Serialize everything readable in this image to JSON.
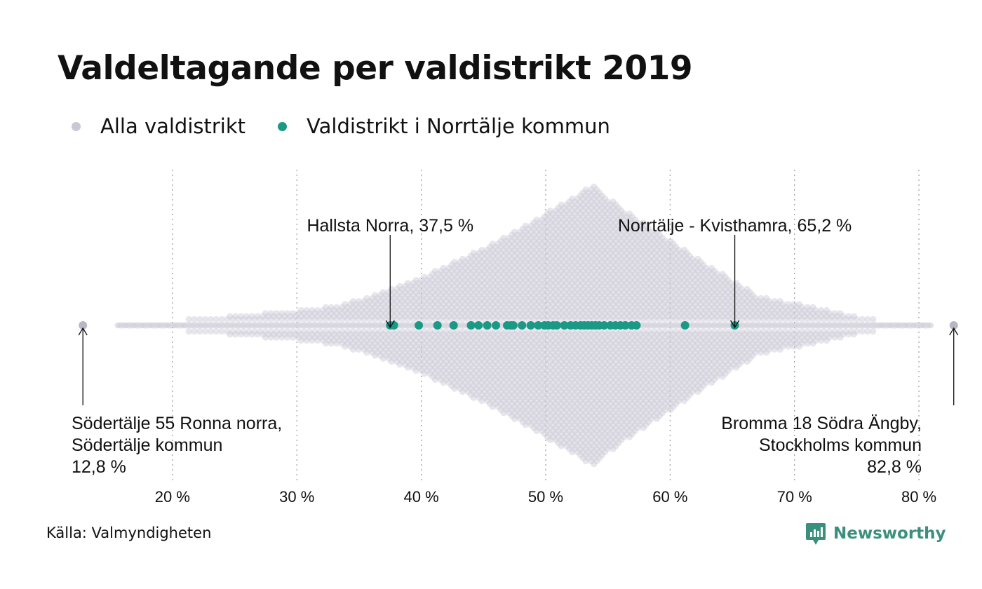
{
  "title": "Valdeltagande per valdistrikt 2019",
  "legend": [
    {
      "label": "Alla valdistrikt",
      "color": "#c9c8d4"
    },
    {
      "label": "Valdistrikt i Norrtälje kommun",
      "color": "#1a9a86"
    }
  ],
  "source": "Källa: Valmyndigheten",
  "brand": {
    "name": "Newsworthy",
    "icon": "newsworthy-logo-icon",
    "color": "#3a8f7d"
  },
  "chart_data": {
    "type": "scatter",
    "subtype": "beeswarm",
    "xlim": [
      12,
      84
    ],
    "ticks": [
      20,
      30,
      40,
      50,
      60,
      70,
      80
    ],
    "tick_labels": [
      "20 %",
      "30 %",
      "40 %",
      "50 %",
      "60 %",
      "70 %",
      "80 %"
    ],
    "grid": "vertical dotted",
    "legend_position": "top-left",
    "series": [
      {
        "name": "Valdistrikt i Norrtälje kommun",
        "color": "#1a9a86",
        "values": [
          37.5,
          37.8,
          39.8,
          41.3,
          42.6,
          44.0,
          44.6,
          45.3,
          46.0,
          46.9,
          47.2,
          47.4,
          48.1,
          48.8,
          49.4,
          49.9,
          50.2,
          50.6,
          50.9,
          51.5,
          52.0,
          52.4,
          52.8,
          53.1,
          53.4,
          53.7,
          54.0,
          54.3,
          54.7,
          55.2,
          55.6,
          56.0,
          56.4,
          56.9,
          57.3,
          61.2,
          65.2
        ]
      },
      {
        "name": "Alla valdistrikt",
        "color": "#c9c8d4",
        "distribution_note": "approx. 6000 districts, densest near 53.5 %",
        "min": 12.8,
        "max": 82.8
      }
    ],
    "annotations": [
      {
        "lines": [
          "Hallsta Norra, 37,5 %"
        ],
        "x": 37.5,
        "anchor": "middle"
      },
      {
        "lines": [
          "Norrtälje - Kvisthamra, 65,2 %"
        ],
        "x": 65.2,
        "anchor": "middle"
      },
      {
        "lines": [
          "Södertälje 55 Ronna norra,",
          "Södertälje kommun",
          "12,8 %"
        ],
        "x": 12.8,
        "anchor": "start"
      },
      {
        "lines": [
          "Bromma 18 Södra Ängby,",
          "Stockholms kommun",
          "82,8 %"
        ],
        "x": 82.8,
        "anchor": "end"
      }
    ]
  }
}
